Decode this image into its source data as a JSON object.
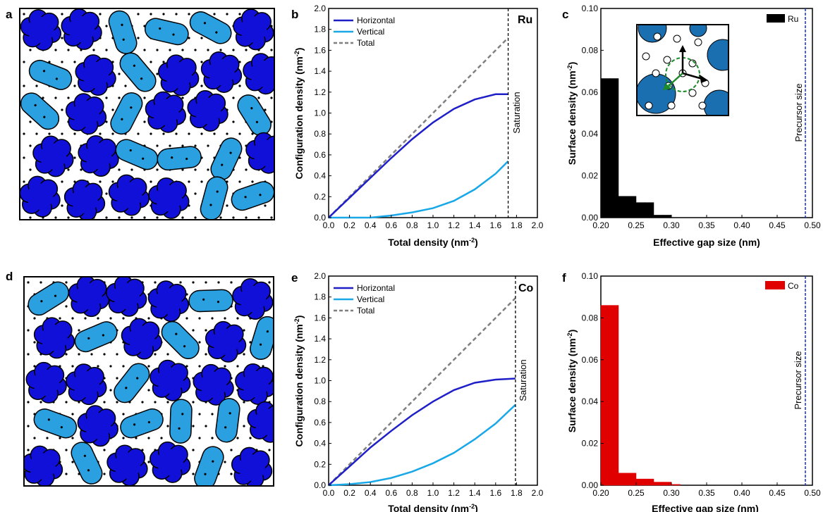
{
  "panel_labels": [
    "a",
    "b",
    "c",
    "d",
    "e",
    "f"
  ],
  "colors": {
    "horizontal": "#1f1fc8",
    "vertical": "#18a8e8",
    "total": "#808080",
    "ru": "#000000",
    "co": "#e00000",
    "dark_blob": "#1010d8",
    "light_blob": "#2aa0e0",
    "inset_blob": "#1a6fb0",
    "precursor_line": "#1030d0"
  },
  "chart_data": [
    {
      "id": "b",
      "type": "line",
      "tag": "Ru",
      "xlabel": "Total density (nm",
      "xlabel_sup": "-2",
      "xlabel_end": ")",
      "ylabel": "Configuration density (nm",
      "ylabel_sup": "-2",
      "ylabel_end": ")",
      "xlim": [
        0,
        2.0
      ],
      "ylim": [
        0,
        2.0
      ],
      "xticks": [
        "0.0",
        "0.2",
        "0.4",
        "0.6",
        "0.8",
        "1.0",
        "1.2",
        "1.4",
        "1.6",
        "1.8",
        "2.0"
      ],
      "yticks": [
        "0.0",
        "0.2",
        "0.4",
        "0.6",
        "0.8",
        "1.0",
        "1.2",
        "1.4",
        "1.6",
        "1.8",
        "2.0"
      ],
      "saturation_label": "Saturation",
      "saturation_x": 1.72,
      "legend_position": "top-left",
      "series": [
        {
          "name": "Horizontal",
          "style": "solid",
          "x": [
            0,
            0.2,
            0.4,
            0.6,
            0.8,
            1.0,
            1.2,
            1.4,
            1.6,
            1.72
          ],
          "y": [
            0,
            0.19,
            0.38,
            0.57,
            0.75,
            0.91,
            1.04,
            1.13,
            1.18,
            1.18
          ]
        },
        {
          "name": "Vertical",
          "style": "solid",
          "x": [
            0,
            0.2,
            0.4,
            0.6,
            0.8,
            1.0,
            1.2,
            1.4,
            1.6,
            1.72
          ],
          "y": [
            0,
            0.0,
            0.0,
            0.02,
            0.05,
            0.09,
            0.16,
            0.27,
            0.42,
            0.54
          ]
        },
        {
          "name": "Total",
          "style": "dashed",
          "x": [
            0,
            1.72
          ],
          "y": [
            0,
            1.72
          ]
        }
      ]
    },
    {
      "id": "c",
      "type": "bar",
      "legend": "Ru",
      "xlabel": "Effective gap size (nm)",
      "ylabel": "Surface density (nm",
      "ylabel_sup": "-2",
      "ylabel_end": ")",
      "xlim": [
        0.2,
        0.5
      ],
      "ylim": [
        0,
        0.1
      ],
      "xticks": [
        "0.20",
        "0.25",
        "0.30",
        "0.35",
        "0.40",
        "0.45",
        "0.50"
      ],
      "yticks": [
        "0.00",
        "0.02",
        "0.04",
        "0.06",
        "0.08",
        "0.10"
      ],
      "bin_width": 0.0125,
      "bin_starts": [
        0.2,
        0.2125,
        0.225,
        0.2375,
        0.25,
        0.2625,
        0.275,
        0.2875
      ],
      "values": [
        0.0665,
        0.0665,
        0.0102,
        0.0102,
        0.0072,
        0.0072,
        0.0012,
        0.0012
      ],
      "precursor_label": "Precursor size",
      "precursor_x": 0.49
    },
    {
      "id": "e",
      "type": "line",
      "tag": "Co",
      "xlabel": "Total density (nm",
      "xlabel_sup": "-2",
      "xlabel_end": ")",
      "ylabel": "Configuration density (nm",
      "ylabel_sup": "-2",
      "ylabel_end": ")",
      "xlim": [
        0,
        2.0
      ],
      "ylim": [
        0,
        2.0
      ],
      "xticks": [
        "0.0",
        "0.2",
        "0.4",
        "0.6",
        "0.8",
        "1.0",
        "1.2",
        "1.4",
        "1.6",
        "1.8",
        "2.0"
      ],
      "yticks": [
        "0.0",
        "0.2",
        "0.4",
        "0.6",
        "0.8",
        "1.0",
        "1.2",
        "1.4",
        "1.6",
        "1.8",
        "2.0"
      ],
      "saturation_label": "Saturation",
      "saturation_x": 1.79,
      "legend_position": "top-left",
      "series": [
        {
          "name": "Horizontal",
          "style": "solid",
          "x": [
            0,
            0.2,
            0.4,
            0.6,
            0.8,
            1.0,
            1.2,
            1.4,
            1.6,
            1.79
          ],
          "y": [
            0,
            0.18,
            0.36,
            0.52,
            0.67,
            0.8,
            0.91,
            0.98,
            1.01,
            1.02
          ]
        },
        {
          "name": "Vertical",
          "style": "solid",
          "x": [
            0,
            0.2,
            0.4,
            0.6,
            0.8,
            1.0,
            1.2,
            1.4,
            1.6,
            1.79
          ],
          "y": [
            0,
            0.01,
            0.03,
            0.07,
            0.13,
            0.21,
            0.31,
            0.44,
            0.59,
            0.77
          ]
        },
        {
          "name": "Total",
          "style": "dashed",
          "x": [
            0,
            1.79
          ],
          "y": [
            0,
            1.79
          ]
        }
      ]
    },
    {
      "id": "f",
      "type": "bar",
      "legend": "Co",
      "xlabel": "Effective gap size (nm)",
      "ylabel": "Surface density (nm",
      "ylabel_sup": "-2",
      "ylabel_end": ")",
      "xlim": [
        0.2,
        0.5
      ],
      "ylim": [
        0,
        0.1
      ],
      "xticks": [
        "0.20",
        "0.25",
        "0.30",
        "0.35",
        "0.40",
        "0.45",
        "0.50"
      ],
      "yticks": [
        "0.00",
        "0.02",
        "0.04",
        "0.06",
        "0.08",
        "0.10"
      ],
      "bin_width": 0.0125,
      "bin_starts": [
        0.2,
        0.2125,
        0.225,
        0.2375,
        0.25,
        0.2625,
        0.275,
        0.2875,
        0.3
      ],
      "values": [
        0.086,
        0.086,
        0.0058,
        0.0058,
        0.003,
        0.003,
        0.0015,
        0.0015,
        0.0004
      ],
      "precursor_label": "Precursor size",
      "precursor_x": 0.49
    }
  ]
}
